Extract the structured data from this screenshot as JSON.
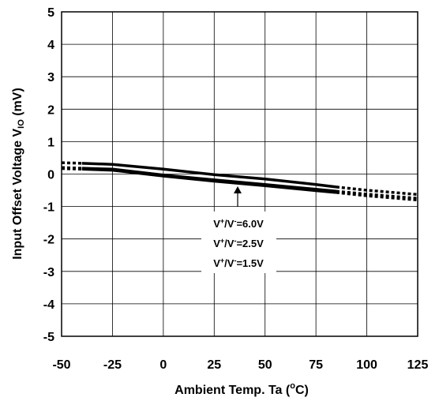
{
  "chart_data": {
    "type": "line",
    "xlabel": {
      "main": "Ambient Temp. Ta (",
      "sup": "o",
      "tail": "C)"
    },
    "ylabel": {
      "main": "Input Offset Voltage V",
      "sub": "IO",
      "tail": " (mV)"
    },
    "xlim": [
      -50,
      125
    ],
    "ylim": [
      -5,
      5
    ],
    "x_ticks": [
      "-50",
      "-25",
      "0",
      "25",
      "50",
      "75",
      "100",
      "125"
    ],
    "y_ticks": [
      "5",
      "4",
      "3",
      "2",
      "1",
      "0",
      "-1",
      "-2",
      "-3",
      "-4",
      "-5"
    ],
    "grid": true,
    "series": [
      {
        "label": {
          "a": "V",
          "asup": "+",
          "b": "/V",
          "bsup": "-",
          "c": "=6.0V"
        },
        "x": [
          -50,
          -25,
          0,
          25,
          50,
          75,
          85,
          100,
          125
        ],
        "y": [
          0.35,
          0.3,
          0.15,
          -0.02,
          -0.15,
          -0.32,
          -0.4,
          -0.5,
          -0.63
        ]
      },
      {
        "label": {
          "a": "V",
          "asup": "+",
          "b": "/V",
          "bsup": "-",
          "c": "=2.5V"
        },
        "x": [
          -50,
          -25,
          0,
          25,
          50,
          75,
          85,
          100,
          125
        ],
        "y": [
          0.2,
          0.15,
          -0.03,
          -0.18,
          -0.32,
          -0.47,
          -0.53,
          -0.62,
          -0.75
        ]
      },
      {
        "label": {
          "a": "V",
          "asup": "+",
          "b": "/V",
          "bsup": "-",
          "c": "=1.5V"
        },
        "x": [
          -50,
          -25,
          0,
          25,
          50,
          75,
          85,
          100,
          125
        ],
        "y": [
          0.17,
          0.12,
          -0.06,
          -0.22,
          -0.36,
          -0.51,
          -0.57,
          -0.67,
          -0.8
        ]
      }
    ],
    "measured_range_x": [
      -40,
      85
    ],
    "annotation_arrow_x": 35
  }
}
